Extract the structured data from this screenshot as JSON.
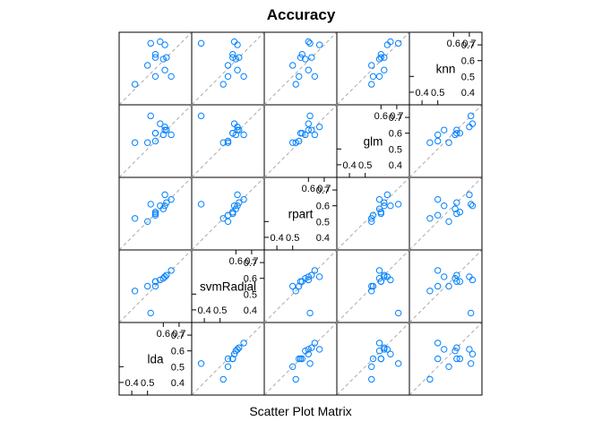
{
  "chart_data": {
    "type": "scatter",
    "title": "Accuracy",
    "xlabel": "Scatter Plot Matrix",
    "variables": [
      "lda",
      "svmRadial",
      "rpart",
      "glm",
      "knn"
    ],
    "axis_range": [
      0.32,
      0.78
    ],
    "diag_ticks": {
      "low": [
        0.4,
        0.5
      ],
      "high": [
        0.6,
        0.7
      ],
      "low_labels": [
        "0.4",
        "0.5"
      ],
      "high_labels": [
        "0.6",
        "0.7"
      ]
    },
    "reference_line": "y = x",
    "grid": false,
    "colors": {
      "points": "#0080ff",
      "reference_line": "#aaaaaa",
      "frame": "#000000"
    },
    "series": [
      {
        "values": {
          "lda": [
            0.62,
            0.42,
            0.55,
            0.61,
            0.55,
            0.6,
            0.52,
            0.65,
            0.55,
            0.58,
            0.61,
            0.5
          ],
          "svmRadial": [
            0.62,
            0.52,
            0.55,
            0.61,
            0.58,
            0.6,
            0.38,
            0.65,
            0.58,
            0.59,
            0.61,
            0.55
          ],
          "rpart": [
            0.62,
            0.52,
            0.54,
            0.6,
            0.56,
            0.58,
            0.61,
            0.64,
            0.55,
            0.6,
            0.67,
            0.5
          ],
          "glm": [
            0.62,
            0.54,
            0.55,
            0.62,
            0.6,
            0.59,
            0.71,
            0.59,
            0.6,
            0.66,
            0.64,
            0.54
          ],
          "knn": [
            0.62,
            0.45,
            0.5,
            0.54,
            0.64,
            0.61,
            0.71,
            0.5,
            0.62,
            0.72,
            0.7,
            0.57
          ]
        }
      }
    ]
  }
}
